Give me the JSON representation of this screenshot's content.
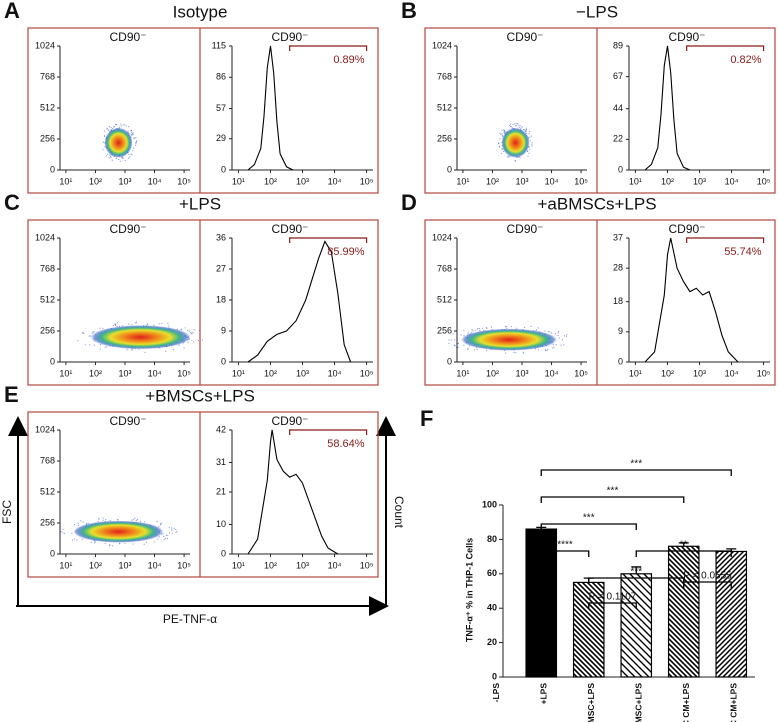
{
  "flow": {
    "log_xlim": [
      0.8,
      5.2
    ],
    "log_xticks": [
      {
        "value": 1,
        "label": "10¹"
      },
      {
        "value": 2,
        "label": "10²"
      },
      {
        "value": 3,
        "label": "10³"
      },
      {
        "value": 4,
        "label": "10⁴"
      },
      {
        "value": 5,
        "label": "10⁵"
      }
    ],
    "dot_ylim": [
      0,
      1024
    ],
    "dot_yticks": [
      0,
      256,
      512,
      768,
      1024
    ],
    "panels": [
      {
        "letter": "A",
        "title": "Isotype",
        "dot_label": "CD90⁻",
        "hist_label": "CD90⁻",
        "gate": {
          "value": 0.89,
          "label": "0.89%",
          "range": [
            2.6,
            5.0
          ]
        },
        "hist_ylim": [
          0,
          115
        ],
        "hist_yticks": [
          0,
          29,
          57,
          86,
          115
        ],
        "hist_x": [
          1.3,
          1.5,
          1.7,
          1.8,
          1.9,
          2.0,
          2.1,
          2.2,
          2.3,
          2.5,
          2.7
        ],
        "hist_counts": [
          0,
          5,
          20,
          50,
          95,
          115,
          90,
          45,
          15,
          3,
          0
        ]
      },
      {
        "letter": "B",
        "title": "−LPS",
        "dot_label": "CD90⁻",
        "hist_label": "CD90⁻",
        "gate": {
          "value": 0.82,
          "label": "0.82%",
          "range": [
            2.6,
            5.0
          ]
        },
        "hist_ylim": [
          0,
          89
        ],
        "hist_yticks": [
          0,
          22,
          44,
          67,
          89
        ],
        "hist_x": [
          1.3,
          1.5,
          1.7,
          1.8,
          1.9,
          2.0,
          2.1,
          2.2,
          2.3,
          2.5,
          2.7
        ],
        "hist_counts": [
          0,
          4,
          16,
          40,
          75,
          89,
          70,
          36,
          12,
          2,
          0
        ]
      },
      {
        "letter": "C",
        "title": "+LPS",
        "dot_label": "CD90⁻",
        "hist_label": "CD90⁻",
        "gate": {
          "value": 85.99,
          "label": "85.99%",
          "range": [
            2.6,
            5.0
          ]
        },
        "hist_ylim": [
          0,
          36
        ],
        "hist_yticks": [
          0,
          9,
          18,
          27,
          36
        ],
        "hist_x": [
          1.3,
          1.6,
          1.9,
          2.2,
          2.5,
          2.8,
          3.1,
          3.3,
          3.5,
          3.7,
          3.9,
          4.1,
          4.3,
          4.5
        ],
        "hist_counts": [
          0,
          2,
          6,
          8,
          9,
          12,
          18,
          24,
          30,
          35,
          32,
          20,
          5,
          0
        ]
      },
      {
        "letter": "D",
        "title": "+aBMSCs+LPS",
        "dot_label": "CD90⁻",
        "hist_label": "CD90⁻",
        "gate": {
          "value": 55.74,
          "label": "55.74%",
          "range": [
            2.6,
            5.0
          ]
        },
        "hist_ylim": [
          0,
          37
        ],
        "hist_yticks": [
          0,
          9,
          18,
          28,
          37
        ],
        "hist_x": [
          1.3,
          1.6,
          1.9,
          2.0,
          2.1,
          2.3,
          2.5,
          2.7,
          2.9,
          3.1,
          3.3,
          3.5,
          3.7,
          3.9,
          4.2
        ],
        "hist_counts": [
          0,
          3,
          20,
          32,
          37,
          28,
          24,
          21,
          22,
          20,
          21,
          15,
          8,
          3,
          0
        ]
      },
      {
        "letter": "E",
        "title": "+BMSCs+LPS",
        "dot_label": "CD90⁻",
        "hist_label": "CD90⁻",
        "gate": {
          "value": 58.64,
          "label": "58.64%",
          "range": [
            2.6,
            5.0
          ]
        },
        "hist_ylim": [
          0,
          42
        ],
        "hist_yticks": [
          0,
          10,
          21,
          31,
          42
        ],
        "hist_x": [
          1.3,
          1.6,
          1.9,
          2.0,
          2.05,
          2.2,
          2.4,
          2.6,
          2.8,
          3.0,
          3.2,
          3.4,
          3.6,
          3.8,
          4.1
        ],
        "hist_counts": [
          0,
          5,
          25,
          38,
          42,
          32,
          28,
          26,
          27,
          24,
          18,
          12,
          6,
          2,
          0
        ]
      }
    ],
    "axis_labels": {
      "y": "FSC",
      "y2": "Count",
      "x": "PE-TNF-α"
    }
  },
  "chart_data": {
    "type": "bar",
    "letter": "F",
    "ylabel": "TNF-α⁺ % in THP-1 Cells",
    "categories": [
      "-LPS",
      "+LPS",
      "+aBMSC+LPS",
      "+BMSC+LPS",
      "+aBMSC CM+LPS",
      "+BMSC CM+LPS"
    ],
    "values": [
      0,
      86,
      55,
      60,
      76,
      73
    ],
    "errors": [
      0,
      1,
      2.5,
      4,
      2,
      1.5
    ],
    "patterns": [
      "solid",
      "solid",
      "back-dense",
      "back",
      "back-dense",
      "forward"
    ],
    "color": "#000000",
    "ylim": [
      0,
      100
    ],
    "yticks": [
      0,
      20,
      40,
      60,
      80,
      100
    ],
    "brackets": [
      {
        "from": 1,
        "to": 5,
        "label": "***"
      },
      {
        "from": 1,
        "to": 4,
        "label": "***"
      },
      {
        "from": 1,
        "to": 3,
        "label": "***"
      },
      {
        "from": 1,
        "to": 2,
        "label": "****"
      },
      {
        "from": 3,
        "to": 5,
        "label": "**"
      },
      {
        "from": 2,
        "to": 4,
        "label": "***"
      },
      {
        "from": 4,
        "to": 5,
        "label": "P = 0.0555"
      },
      {
        "from": 2,
        "to": 3,
        "label": "P = 0.1107"
      }
    ]
  }
}
